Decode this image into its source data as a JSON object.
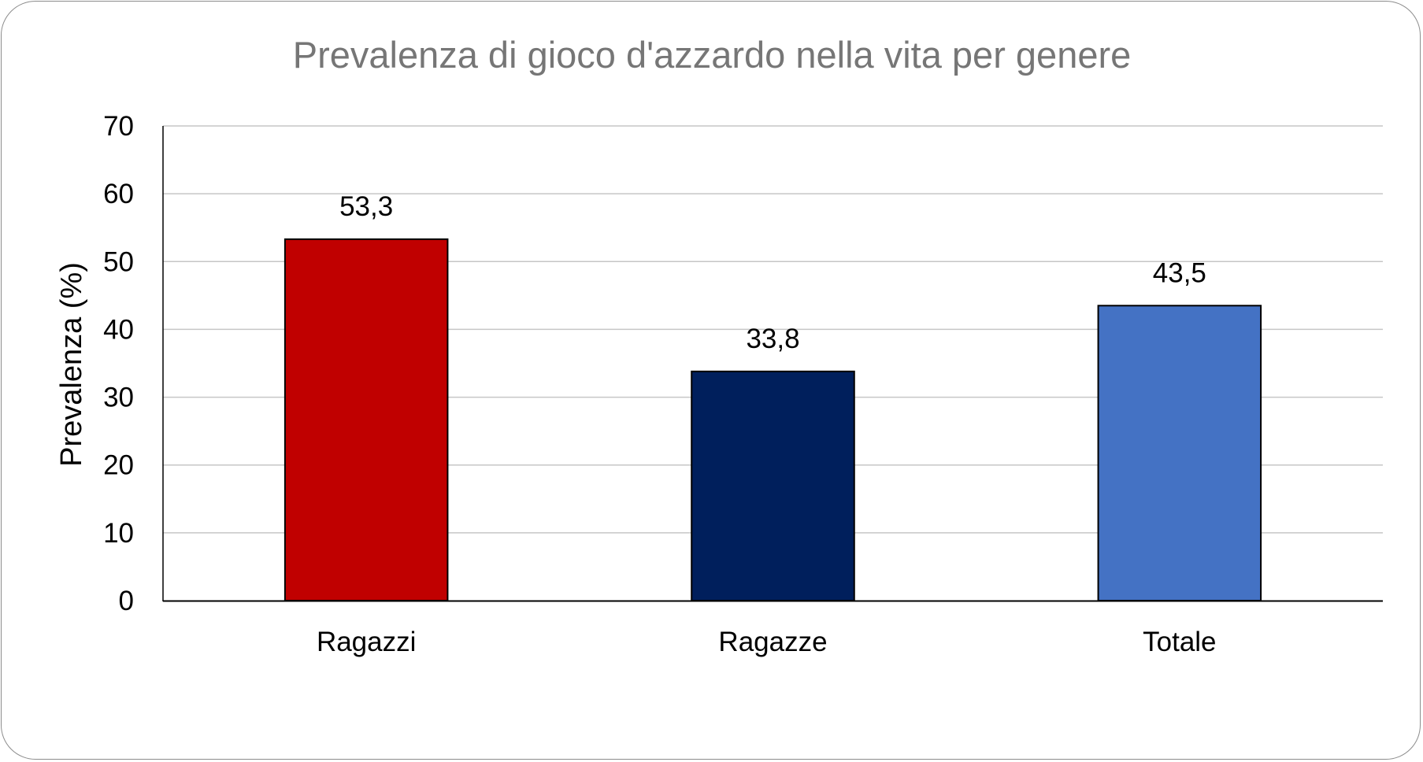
{
  "chart_data": {
    "type": "bar",
    "title": "Prevalenza di gioco d'azzardo nella vita per genere",
    "xlabel": "",
    "ylabel": "Prevalenza (%)",
    "categories": [
      "Ragazzi",
      "Ragazze",
      "Totale"
    ],
    "values": [
      53.3,
      33.8,
      43.5
    ],
    "value_labels": [
      "53,3",
      "33,8",
      "43,5"
    ],
    "colors": [
      "#c00000",
      "#001f5c",
      "#4472c4"
    ],
    "ylim": [
      0,
      70
    ],
    "yticks": [
      0,
      10,
      20,
      30,
      40,
      50,
      60,
      70
    ],
    "ytick_labels": [
      "0",
      "10",
      "20",
      "30",
      "40",
      "50",
      "60",
      "70"
    ],
    "grid": true,
    "legend": "none"
  }
}
